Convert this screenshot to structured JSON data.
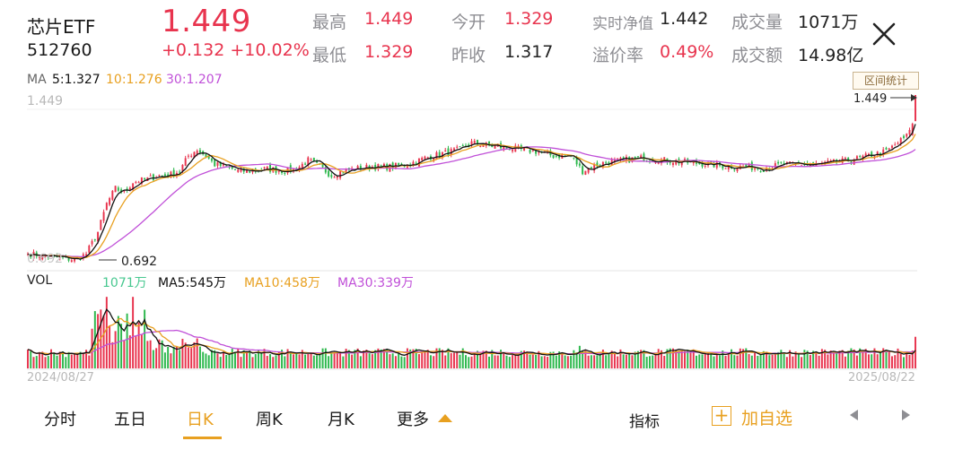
{
  "header": {
    "name": "芯片ETF",
    "code": "512760",
    "price": "1.449",
    "change": "+0.132",
    "change_pct": "+10.02%"
  },
  "stats": {
    "high_label": "最高",
    "high": "1.449",
    "low_label": "最低",
    "low": "1.329",
    "open_label": "今开",
    "open": "1.329",
    "prev_label": "昨收",
    "prev": "1.317",
    "nav_label": "实时净值",
    "nav": "1.442",
    "premium_label": "溢价率",
    "premium": "0.49%",
    "vol_label": "成交量",
    "vol": "1071万",
    "amount_label": "成交额",
    "amount": "14.98亿"
  },
  "ma_legend": {
    "prefix": "MA",
    "ma5": "5:1.327",
    "ma10": "10:1.276",
    "ma30": "30:1.207"
  },
  "vol_legend": {
    "prefix": "VOL",
    "vol": "1071万",
    "ma5": "MA5:545万",
    "ma10": "MA10:458万",
    "ma30": "MA30:339万"
  },
  "range_button": "区间统计",
  "price_axis_top": "1.449",
  "max_marker": "1.449",
  "min_marker": "0.692",
  "min_ghost": "0.692",
  "date_start": "2024/08/27",
  "date_end": "2025/08/22",
  "tabs": [
    {
      "label": "分时"
    },
    {
      "label": "五日"
    },
    {
      "label": "日K"
    },
    {
      "label": "周K"
    },
    {
      "label": "月K"
    },
    {
      "label": "更多"
    }
  ],
  "indicator_label": "指标",
  "add_watch": "加自选",
  "colors": {
    "up": "#e8344e",
    "down": "#2db84d",
    "ma5": "#111111",
    "ma10": "#e8a020",
    "ma30": "#c050d8",
    "accent": "#e8a020"
  },
  "chart_data": {
    "type": "candlestick",
    "x_start": "2024/08/27",
    "x_end": "2025/08/22",
    "price_range": [
      0.692,
      1.449
    ],
    "close_waypoints": [
      [
        0,
        0.72
      ],
      [
        6,
        0.71
      ],
      [
        12,
        0.7
      ],
      [
        16,
        0.693
      ],
      [
        20,
        0.72
      ],
      [
        24,
        0.82
      ],
      [
        27,
        0.95
      ],
      [
        30,
        1.02
      ],
      [
        33,
        1.0
      ],
      [
        36,
        1.05
      ],
      [
        40,
        1.06
      ],
      [
        45,
        1.08
      ],
      [
        48,
        1.08
      ],
      [
        52,
        1.1
      ],
      [
        55,
        1.17
      ],
      [
        58,
        1.2
      ],
      [
        61,
        1.17
      ],
      [
        64,
        1.13
      ],
      [
        68,
        1.12
      ],
      [
        72,
        1.1
      ],
      [
        76,
        1.1
      ],
      [
        82,
        1.11
      ],
      [
        88,
        1.1
      ],
      [
        92,
        1.11
      ],
      [
        96,
        1.15
      ],
      [
        100,
        1.12
      ],
      [
        104,
        1.08
      ],
      [
        108,
        1.1
      ],
      [
        112,
        1.11
      ],
      [
        118,
        1.12
      ],
      [
        124,
        1.12
      ],
      [
        130,
        1.13
      ],
      [
        136,
        1.16
      ],
      [
        142,
        1.18
      ],
      [
        148,
        1.2
      ],
      [
        152,
        1.23
      ],
      [
        156,
        1.22
      ],
      [
        162,
        1.21
      ],
      [
        168,
        1.2
      ],
      [
        174,
        1.19
      ],
      [
        180,
        1.17
      ],
      [
        186,
        1.17
      ],
      [
        190,
        1.1
      ],
      [
        193,
        1.12
      ],
      [
        198,
        1.14
      ],
      [
        204,
        1.15
      ],
      [
        210,
        1.16
      ],
      [
        218,
        1.15
      ],
      [
        226,
        1.14
      ],
      [
        234,
        1.13
      ],
      [
        240,
        1.12
      ],
      [
        246,
        1.12
      ],
      [
        252,
        1.11
      ],
      [
        258,
        1.13
      ],
      [
        264,
        1.13
      ],
      [
        270,
        1.13
      ],
      [
        276,
        1.14
      ],
      [
        282,
        1.15
      ],
      [
        288,
        1.17
      ],
      [
        294,
        1.19
      ],
      [
        298,
        1.23
      ],
      [
        301,
        1.26
      ],
      [
        303,
        1.317
      ],
      [
        304,
        1.449
      ]
    ],
    "last_candle": {
      "open": 1.329,
      "high": 1.449,
      "low": 1.329,
      "close": 1.449
    },
    "volume_last": "1071万",
    "series": [
      {
        "name": "MA5",
        "value": 1.327
      },
      {
        "name": "MA10",
        "value": 1.276
      },
      {
        "name": "MA30",
        "value": 1.207
      }
    ],
    "volume_series": [
      {
        "name": "VOL",
        "value": "1071万"
      },
      {
        "name": "MA5",
        "value": "545万"
      },
      {
        "name": "MA10",
        "value": "458万"
      },
      {
        "name": "MA30",
        "value": "339万"
      }
    ]
  }
}
